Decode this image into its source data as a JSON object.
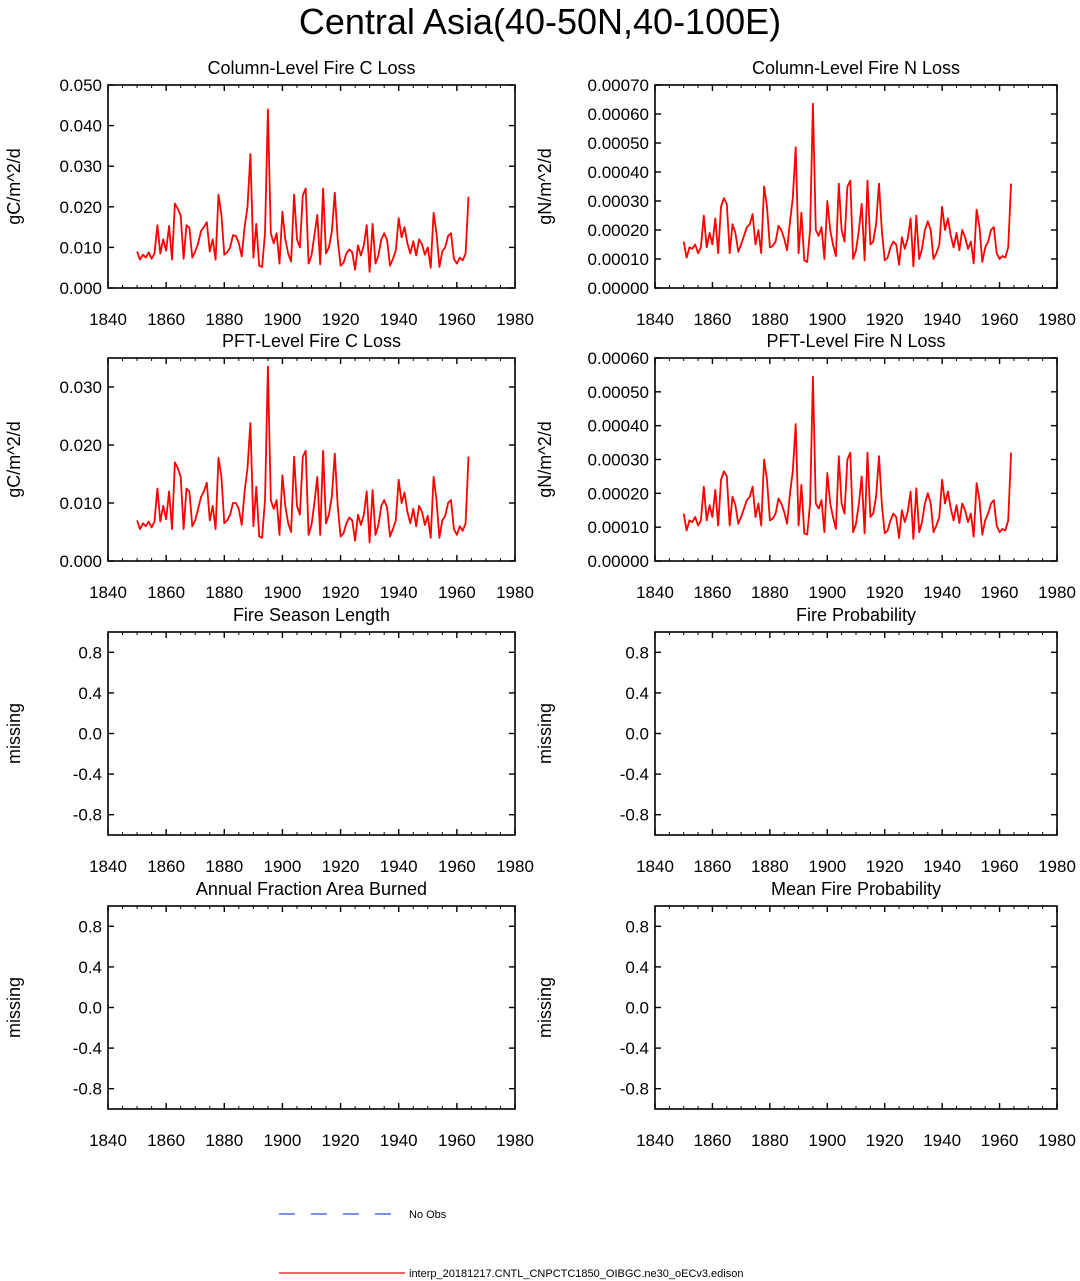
{
  "page": {
    "title": "Central Asia(40-50N,40-100E)"
  },
  "colors": {
    "model_line": "#ff0000",
    "obs_line": "#3050e0",
    "axis": "#000000"
  },
  "legend": {
    "obs_label": "No Obs",
    "model_label": "interp_20181217.CNTL_CNPCTC1850_OIBGC.ne30_oECv3.edison"
  },
  "chart_data": [
    {
      "type": "line",
      "title": "Column-Level Fire C Loss",
      "ylabel": "gC/m^2/d",
      "xlim": [
        1840,
        1980
      ],
      "ylim": [
        0,
        0.05
      ],
      "xticks": [
        1840,
        1860,
        1880,
        1900,
        1920,
        1940,
        1960,
        1980
      ],
      "xtick_labels": [
        "1840",
        "1860",
        "1880",
        "1900",
        "1920",
        "1940",
        "1960",
        "1980"
      ],
      "yticks": [
        0,
        0.01,
        0.02,
        0.03,
        0.04,
        0.05
      ],
      "ytick_labels": [
        "0.000",
        "0.010",
        "0.020",
        "0.030",
        "0.040",
        "0.050"
      ],
      "series": [
        {
          "name": "interp_20181217.CNTL_CNPCTC1850_OIBGC.ne30_oECv3.edison",
          "x_start": 1850,
          "values": [
            0.009,
            0.007,
            0.0082,
            0.0075,
            0.0088,
            0.0072,
            0.0085,
            0.0155,
            0.0085,
            0.012,
            0.0092,
            0.0153,
            0.007,
            0.0208,
            0.0195,
            0.0178,
            0.0072,
            0.0155,
            0.0148,
            0.0075,
            0.009,
            0.011,
            0.014,
            0.015,
            0.0162,
            0.009,
            0.012,
            0.007,
            0.023,
            0.018,
            0.0082,
            0.0088,
            0.01,
            0.013,
            0.0128,
            0.011,
            0.0078,
            0.015,
            0.02,
            0.033,
            0.0075,
            0.0158,
            0.0055,
            0.0052,
            0.0135,
            0.044,
            0.0135,
            0.011,
            0.0135,
            0.006,
            0.0188,
            0.012,
            0.0085,
            0.0065,
            0.023,
            0.012,
            0.01,
            0.0228,
            0.0245,
            0.006,
            0.008,
            0.013,
            0.018,
            0.0058,
            0.0245,
            0.0085,
            0.01,
            0.014,
            0.0235,
            0.012,
            0.0055,
            0.0062,
            0.0085,
            0.0095,
            0.0088,
            0.0045,
            0.0105,
            0.008,
            0.0105,
            0.0155,
            0.004,
            0.0158,
            0.006,
            0.008,
            0.012,
            0.0135,
            0.0118,
            0.0055,
            0.0072,
            0.0092,
            0.0172,
            0.0125,
            0.015,
            0.011,
            0.0085,
            0.0115,
            0.008,
            0.012,
            0.0108,
            0.0082,
            0.01,
            0.005,
            0.0185,
            0.0135,
            0.0052,
            0.009,
            0.01,
            0.0128,
            0.0135,
            0.0072,
            0.006,
            0.0075,
            0.0068,
            0.0085,
            0.0225
          ]
        }
      ]
    },
    {
      "type": "line",
      "title": "Column-Level Fire N Loss",
      "ylabel": "gN/m^2/d",
      "xlim": [
        1840,
        1980
      ],
      "ylim": [
        0,
        0.0007
      ],
      "xticks": [
        1840,
        1860,
        1880,
        1900,
        1920,
        1940,
        1960,
        1980
      ],
      "xtick_labels": [
        "1840",
        "1860",
        "1880",
        "1900",
        "1920",
        "1940",
        "1960",
        "1980"
      ],
      "yticks": [
        0,
        0.0001,
        0.0002,
        0.0003,
        0.0004,
        0.0005,
        0.0006,
        0.0007
      ],
      "ytick_labels": [
        "0.00000",
        "0.00010",
        "0.00020",
        "0.00030",
        "0.00040",
        "0.00050",
        "0.00060",
        "0.00070"
      ],
      "series": [
        {
          "name": "interp_20181217.CNTL_CNPCTC1850_OIBGC.ne30_oECv3.edison",
          "x_start": 1850,
          "values": [
            0.00016,
            0.000105,
            0.00014,
            0.000135,
            0.00015,
            0.00012,
            0.00014,
            0.00025,
            0.00014,
            0.00019,
            0.00015,
            0.00024,
            0.00012,
            0.00028,
            0.00031,
            0.00029,
            0.00012,
            0.00022,
            0.00019,
            0.000125,
            0.00015,
            0.00018,
            0.00021,
            0.00022,
            0.000255,
            0.00015,
            0.0002,
            0.00012,
            0.00035,
            0.00028,
            0.00014,
            0.000145,
            0.00016,
            0.000215,
            0.0002,
            0.00017,
            0.00013,
            0.00023,
            0.00031,
            0.000485,
            0.00012,
            0.00026,
            9.5e-05,
            9e-05,
            0.0002,
            0.000635,
            0.0002,
            0.00018,
            0.00021,
            0.0001,
            0.0003,
            0.0002,
            0.00015,
            0.00011,
            0.00036,
            0.0002,
            0.00016,
            0.00035,
            0.00037,
            0.0001,
            0.00013,
            0.0002,
            0.00029,
            9.5e-05,
            0.00037,
            0.00015,
            0.00016,
            0.00022,
            0.00036,
            0.0002,
            9.5e-05,
            0.000105,
            0.00014,
            0.00016,
            0.00015,
            8e-05,
            0.000175,
            0.000135,
            0.00017,
            0.00024,
            7.5e-05,
            0.00025,
            0.0001,
            0.000135,
            0.0002,
            0.00023,
            0.0002,
            0.0001,
            0.00012,
            0.00015,
            0.00028,
            0.0002,
            0.00024,
            0.00018,
            0.00014,
            0.00019,
            0.00013,
            0.0002,
            0.000175,
            0.000135,
            0.00016,
            8.5e-05,
            0.00027,
            0.00021,
            9e-05,
            0.00014,
            0.00016,
            0.0002,
            0.00021,
            0.00012,
            0.0001,
            0.00011,
            0.000105,
            0.00014,
            0.00036
          ]
        }
      ]
    },
    {
      "type": "line",
      "title": "PFT-Level Fire C Loss",
      "ylabel": "gC/m^2/d",
      "xlim": [
        1840,
        1980
      ],
      "ylim": [
        0,
        0.035
      ],
      "xticks": [
        1840,
        1860,
        1880,
        1900,
        1920,
        1940,
        1960,
        1980
      ],
      "xtick_labels": [
        "1840",
        "1860",
        "1880",
        "1900",
        "1920",
        "1940",
        "1960",
        "1980"
      ],
      "yticks": [
        0,
        0.01,
        0.02,
        0.03
      ],
      "ytick_labels": [
        "0.000",
        "0.010",
        "0.020",
        "0.030"
      ],
      "series": [
        {
          "name": "interp_20181217.CNTL_CNPCTC1850_OIBGC.ne30_oECv3.edison",
          "x_start": 1850,
          "values": [
            0.007,
            0.0055,
            0.0065,
            0.006,
            0.0068,
            0.0058,
            0.0068,
            0.0125,
            0.0068,
            0.0095,
            0.0072,
            0.012,
            0.0055,
            0.017,
            0.016,
            0.0145,
            0.0055,
            0.0125,
            0.012,
            0.006,
            0.007,
            0.009,
            0.011,
            0.012,
            0.0135,
            0.007,
            0.0095,
            0.0055,
            0.0178,
            0.0145,
            0.0065,
            0.007,
            0.008,
            0.01,
            0.01,
            0.009,
            0.0062,
            0.012,
            0.016,
            0.0238,
            0.006,
            0.0128,
            0.0042,
            0.004,
            0.0105,
            0.0335,
            0.0105,
            0.009,
            0.0105,
            0.0045,
            0.0148,
            0.0095,
            0.0065,
            0.005,
            0.018,
            0.0095,
            0.008,
            0.018,
            0.019,
            0.0045,
            0.0062,
            0.01,
            0.0145,
            0.0045,
            0.019,
            0.0065,
            0.008,
            0.0112,
            0.0185,
            0.0095,
            0.0042,
            0.0048,
            0.0065,
            0.0075,
            0.007,
            0.0035,
            0.008,
            0.0062,
            0.008,
            0.012,
            0.0032,
            0.0122,
            0.0045,
            0.0062,
            0.0095,
            0.0105,
            0.0092,
            0.0042,
            0.0055,
            0.007,
            0.014,
            0.01,
            0.0118,
            0.0085,
            0.0065,
            0.009,
            0.006,
            0.0095,
            0.0085,
            0.0062,
            0.0078,
            0.004,
            0.0145,
            0.0105,
            0.004,
            0.007,
            0.0078,
            0.01,
            0.0105,
            0.0055,
            0.0045,
            0.006,
            0.0052,
            0.0065,
            0.018
          ]
        }
      ]
    },
    {
      "type": "line",
      "title": "PFT-Level Fire N Loss",
      "ylabel": "gN/m^2/d",
      "xlim": [
        1840,
        1980
      ],
      "ylim": [
        0,
        0.0006
      ],
      "xticks": [
        1840,
        1860,
        1880,
        1900,
        1920,
        1940,
        1960,
        1980
      ],
      "xtick_labels": [
        "1840",
        "1860",
        "1880",
        "1900",
        "1920",
        "1940",
        "1960",
        "1980"
      ],
      "yticks": [
        0,
        0.0001,
        0.0002,
        0.0003,
        0.0004,
        0.0005,
        0.0006
      ],
      "ytick_labels": [
        "0.00000",
        "0.00010",
        "0.00020",
        "0.00030",
        "0.00040",
        "0.00050",
        "0.00060"
      ],
      "series": [
        {
          "name": "interp_20181217.CNTL_CNPCTC1850_OIBGC.ne30_oECv3.edison",
          "x_start": 1850,
          "values": [
            0.00014,
            9e-05,
            0.00012,
            0.000115,
            0.00013,
            0.000105,
            0.00012,
            0.00022,
            0.00012,
            0.000165,
            0.00013,
            0.00021,
            0.000105,
            0.00024,
            0.000265,
            0.00025,
            0.000105,
            0.00019,
            0.000165,
            0.00011,
            0.00013,
            0.000155,
            0.00018,
            0.00019,
            0.00022,
            0.00013,
            0.00017,
            0.000105,
            0.0003,
            0.00024,
            0.00012,
            0.000125,
            0.00014,
            0.000185,
            0.00017,
            0.000145,
            0.00011,
            0.0002,
            0.000265,
            0.000405,
            0.000105,
            0.000225,
            8.2e-05,
            7.8e-05,
            0.00017,
            0.000545,
            0.00017,
            0.000155,
            0.00018,
            8.5e-05,
            0.00026,
            0.00017,
            0.00013,
            9.5e-05,
            0.00031,
            0.00017,
            0.00014,
            0.0003,
            0.00032,
            8.5e-05,
            0.00011,
            0.00017,
            0.00025,
            8.2e-05,
            0.00032,
            0.00013,
            0.00014,
            0.00019,
            0.00031,
            0.00017,
            8.2e-05,
            9e-05,
            0.00012,
            0.00014,
            0.00013,
            6.8e-05,
            0.00015,
            0.000115,
            0.000145,
            0.000205,
            6.5e-05,
            0.000215,
            8.5e-05,
            0.000115,
            0.00017,
            0.0002,
            0.00017,
            8.5e-05,
            0.000105,
            0.00013,
            0.00024,
            0.00017,
            0.000205,
            0.000155,
            0.00012,
            0.000165,
            0.000112,
            0.00017,
            0.00015,
            0.000115,
            0.00014,
            7.2e-05,
            0.00023,
            0.00018,
            7.8e-05,
            0.00012,
            0.00014,
            0.00017,
            0.00018,
            0.000105,
            8.5e-05,
            9.5e-05,
            9e-05,
            0.00012,
            0.00032
          ]
        }
      ]
    },
    {
      "type": "line",
      "title": "Fire Season Length",
      "ylabel": "missing",
      "xlim": [
        1840,
        1980
      ],
      "ylim": [
        -1,
        1
      ],
      "xticks": [
        1840,
        1860,
        1880,
        1900,
        1920,
        1940,
        1960,
        1980
      ],
      "xtick_labels": [
        "1840",
        "1860",
        "1880",
        "1900",
        "1920",
        "1940",
        "1960",
        "1980"
      ],
      "yticks": [
        -0.8,
        -0.4,
        0,
        0.4,
        0.8
      ],
      "ytick_labels": [
        "-0.8",
        "-0.4",
        "0.0",
        "0.4",
        "0.8"
      ],
      "series": []
    },
    {
      "type": "line",
      "title": "Fire Probability",
      "ylabel": "missing",
      "xlim": [
        1840,
        1980
      ],
      "ylim": [
        -1,
        1
      ],
      "xticks": [
        1840,
        1860,
        1880,
        1900,
        1920,
        1940,
        1960,
        1980
      ],
      "xtick_labels": [
        "1840",
        "1860",
        "1880",
        "1900",
        "1920",
        "1940",
        "1960",
        "1980"
      ],
      "yticks": [
        -0.8,
        -0.4,
        0,
        0.4,
        0.8
      ],
      "ytick_labels": [
        "-0.8",
        "-0.4",
        "0.0",
        "0.4",
        "0.8"
      ],
      "series": []
    },
    {
      "type": "line",
      "title": "Annual Fraction Area Burned",
      "ylabel": "missing",
      "xlim": [
        1840,
        1980
      ],
      "ylim": [
        -1,
        1
      ],
      "xticks": [
        1840,
        1860,
        1880,
        1900,
        1920,
        1940,
        1960,
        1980
      ],
      "xtick_labels": [
        "1840",
        "1860",
        "1880",
        "1900",
        "1920",
        "1940",
        "1960",
        "1980"
      ],
      "yticks": [
        -0.8,
        -0.4,
        0,
        0.4,
        0.8
      ],
      "ytick_labels": [
        "-0.8",
        "-0.4",
        "0.0",
        "0.4",
        "0.8"
      ],
      "series": []
    },
    {
      "type": "line",
      "title": "Mean Fire Probability",
      "ylabel": "missing",
      "xlim": [
        1840,
        1980
      ],
      "ylim": [
        -1,
        1
      ],
      "xticks": [
        1840,
        1860,
        1880,
        1900,
        1920,
        1940,
        1960,
        1980
      ],
      "xtick_labels": [
        "1840",
        "1860",
        "1880",
        "1900",
        "1920",
        "1940",
        "1960",
        "1980"
      ],
      "yticks": [
        -0.8,
        -0.4,
        0,
        0.4,
        0.8
      ],
      "ytick_labels": [
        "-0.8",
        "-0.4",
        "0.0",
        "0.4",
        "0.8"
      ],
      "series": []
    }
  ]
}
